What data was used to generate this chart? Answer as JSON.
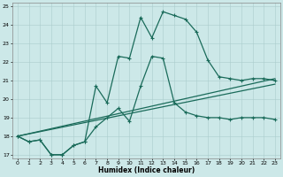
{
  "xlabel": "Humidex (Indice chaleur)",
  "xlim": [
    -0.5,
    23.5
  ],
  "ylim": [
    16.8,
    25.2
  ],
  "xticks": [
    0,
    1,
    2,
    3,
    4,
    5,
    6,
    7,
    8,
    9,
    10,
    11,
    12,
    13,
    14,
    15,
    16,
    17,
    18,
    19,
    20,
    21,
    22,
    23
  ],
  "yticks": [
    17,
    18,
    19,
    20,
    21,
    22,
    23,
    24,
    25
  ],
  "background_color": "#cce8e8",
  "grid_color": "#aacccc",
  "line_color": "#1a6b5a",
  "line1_x": [
    0,
    1,
    2,
    3,
    4,
    5,
    6,
    7,
    8,
    9,
    10,
    11,
    12,
    13,
    14,
    15,
    16,
    17,
    18,
    19,
    20,
    21,
    22,
    23
  ],
  "line1_y": [
    18.0,
    17.7,
    17.8,
    17.0,
    17.0,
    17.5,
    17.7,
    20.7,
    19.8,
    22.3,
    22.2,
    24.4,
    23.3,
    24.7,
    24.5,
    24.3,
    23.6,
    22.1,
    21.2,
    21.1,
    21.0,
    21.1,
    21.1,
    21.0
  ],
  "line2_x": [
    0,
    1,
    2,
    3,
    4,
    5,
    6,
    7,
    8,
    9,
    10,
    11,
    12,
    13,
    14,
    15,
    16,
    17,
    18,
    19,
    20,
    21,
    22,
    23
  ],
  "line2_y": [
    18.0,
    17.7,
    17.8,
    17.0,
    17.0,
    17.5,
    17.7,
    18.5,
    19.0,
    19.5,
    18.8,
    20.7,
    22.3,
    22.2,
    19.8,
    19.3,
    19.1,
    19.0,
    19.0,
    18.9,
    19.0,
    19.0,
    19.0,
    18.9
  ],
  "line3_x": [
    0,
    23
  ],
  "line3_y": [
    18.0,
    21.1
  ],
  "line4_x": [
    0,
    23
  ],
  "line4_y": [
    18.0,
    20.8
  ],
  "marker_size": 2.5,
  "linewidth": 0.9
}
